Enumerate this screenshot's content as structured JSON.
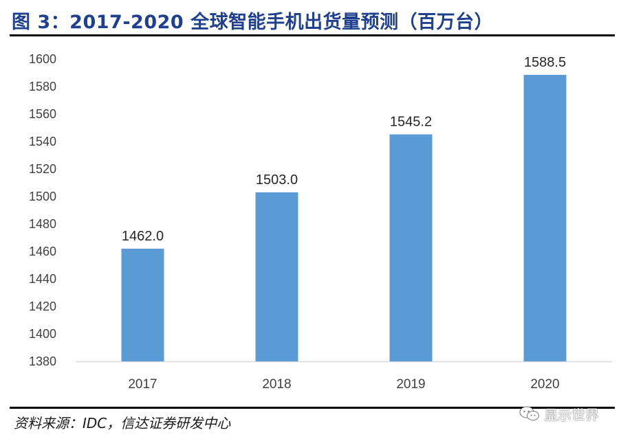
{
  "title": "图 3：2017-2020 全球智能手机出货量预测（百万台）",
  "source": "资料来源：IDC，信达证券研发中心",
  "watermark": {
    "icon": "wechat-icon",
    "text": "显示世界"
  },
  "colors": {
    "title": "#1f3f8f",
    "bar": "#5b9bd5",
    "axis": "#d9d9d9",
    "text": "#404040"
  },
  "chart_data": {
    "type": "bar",
    "title": "",
    "xlabel": "",
    "ylabel": "",
    "categories": [
      "2017",
      "2018",
      "2019",
      "2020"
    ],
    "values": [
      1462.0,
      1503.0,
      1545.2,
      1588.5
    ],
    "data_labels": [
      "1462.0",
      "1503.0",
      "1545.2",
      "1588.5"
    ],
    "ylim": [
      1380,
      1600
    ],
    "yticks": [
      1380,
      1400,
      1420,
      1440,
      1460,
      1480,
      1500,
      1520,
      1540,
      1560,
      1580,
      1600
    ],
    "grid": false,
    "legend": "none"
  }
}
